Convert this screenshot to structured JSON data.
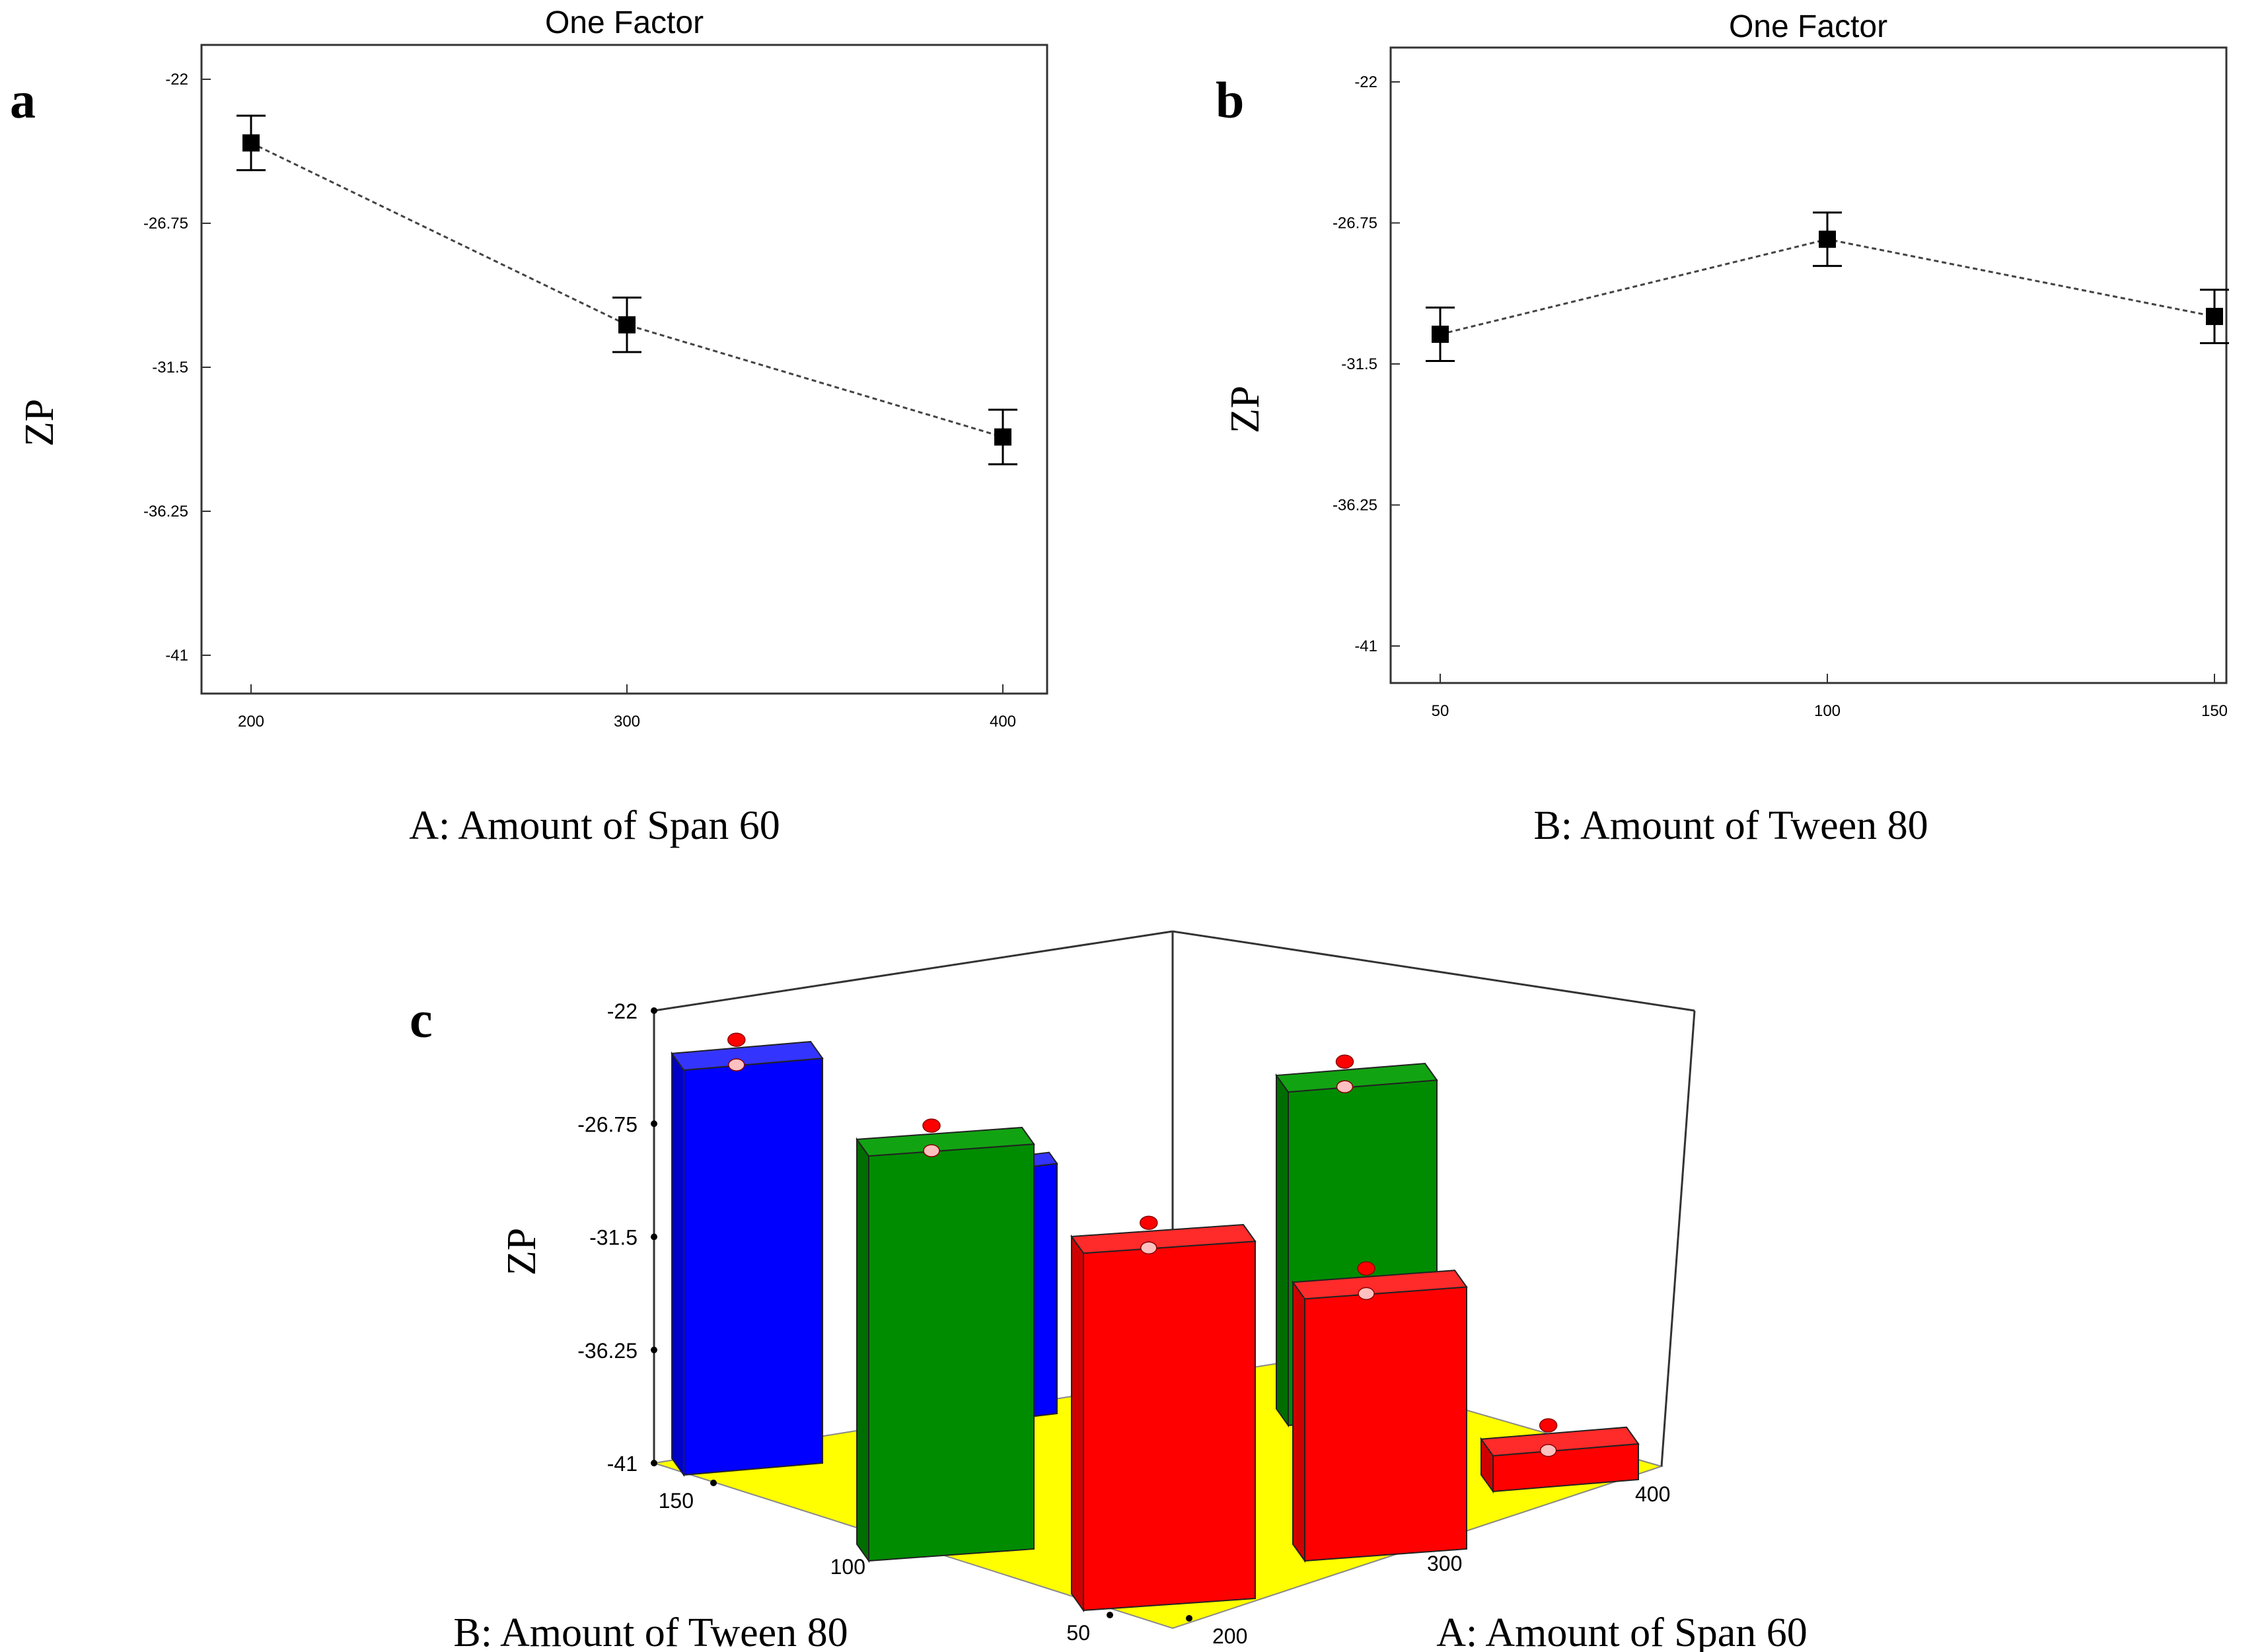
{
  "chart_data": [
    {
      "panel": "a",
      "type": "line",
      "title": "One Factor",
      "xlabel": "A: Amount of Span 60",
      "ylabel": "ZP",
      "x": [
        200,
        300,
        400
      ],
      "xticks": [
        "200",
        "300",
        "400"
      ],
      "y": [
        -24.1,
        -30.1,
        -33.8
      ],
      "error_low": [
        -25.0,
        -31.0,
        -34.7
      ],
      "error_high": [
        -23.2,
        -29.2,
        -32.9
      ],
      "ylim": [
        -41,
        -22
      ],
      "yticks": [
        "-22",
        "-26.75",
        "-31.5",
        "-36.25",
        "-41"
      ],
      "grid": false
    },
    {
      "panel": "b",
      "type": "line",
      "title": "One Factor",
      "xlabel": "B: Amount of Tween 80",
      "ylabel": "ZP",
      "x": [
        50,
        100,
        150
      ],
      "xticks": [
        "50",
        "100",
        "150"
      ],
      "y": [
        -30.5,
        -27.3,
        -29.9
      ],
      "error_low": [
        -31.4,
        -28.2,
        -30.8
      ],
      "error_high": [
        -29.6,
        -26.4,
        -29.0
      ],
      "ylim": [
        -41,
        -22
      ],
      "yticks": [
        "-22",
        "-26.75",
        "-31.5",
        "-36.25",
        "-41"
      ],
      "grid": false
    },
    {
      "panel": "c",
      "type": "bar",
      "xlabel": "A: Amount of Span 60",
      "ylabel": "ZP",
      "depth_label": "B: Amount of Tween 80",
      "x_ticks": [
        "200",
        "300",
        "400"
      ],
      "depth_ticks": [
        "150",
        "100",
        "50"
      ],
      "z_ticks": [
        "-22",
        "-26.75",
        "-31.5",
        "-36.25",
        "-41"
      ],
      "zlim": [
        -41,
        -22
      ],
      "floor_color": "#ffff00",
      "bar_colors": {
        "blue": "#0000ff",
        "green": "#008000",
        "red": "#ff0000"
      },
      "bars": [
        {
          "span60": 200,
          "tween80": 150,
          "zp": -24.0,
          "color": "blue"
        },
        {
          "span60": 300,
          "tween80": 150,
          "zp": -30.5,
          "color": "blue"
        },
        {
          "span60": 200,
          "tween80": 100,
          "zp": -24.0,
          "color": "green"
        },
        {
          "span60": 300,
          "tween80": 100,
          "zp": -27.0,
          "color": "green"
        },
        {
          "span60": 200,
          "tween80": 50,
          "zp": -26.0,
          "color": "red"
        },
        {
          "span60": 300,
          "tween80": 50,
          "zp": -30.0,
          "color": "red"
        },
        {
          "span60": 400,
          "tween80": 50,
          "zp": -39.5,
          "color": "red"
        }
      ]
    }
  ]
}
